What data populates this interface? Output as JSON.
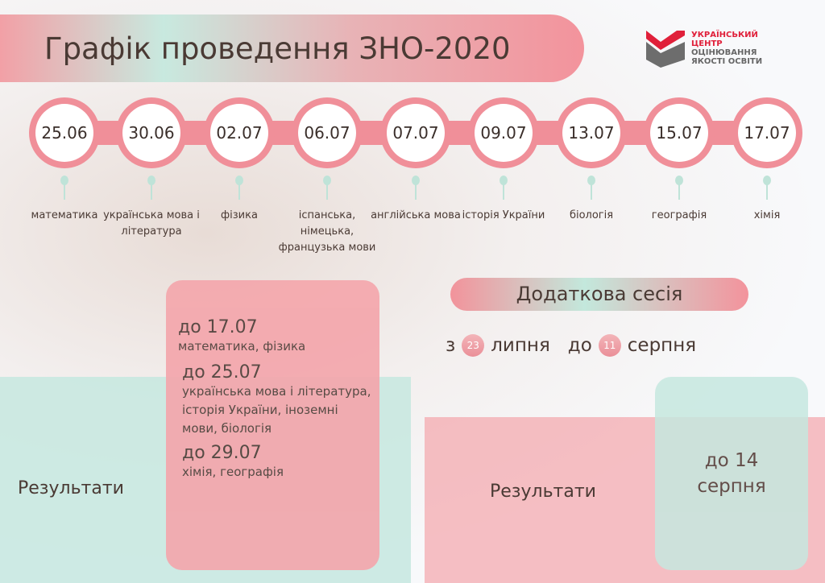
{
  "title": "Графік проведення ЗНО-2020",
  "logo": {
    "line1": "УКРАЇНСЬКИЙ",
    "line2": "ЦЕНТР",
    "line3": "ОЦІНЮВАННЯ",
    "line4": "ЯКОСТІ ОСВІТИ"
  },
  "exams": [
    {
      "date": "25.06",
      "subject": "математика"
    },
    {
      "date": "30.06",
      "subject": "українська мова і література"
    },
    {
      "date": "02.07",
      "subject": "фізика"
    },
    {
      "date": "06.07",
      "subject": "іспанська, німецька, французька мови"
    },
    {
      "date": "07.07",
      "subject": "англійська мова"
    },
    {
      "date": "09.07",
      "subject": "історія України"
    },
    {
      "date": "13.07",
      "subject": "біологія"
    },
    {
      "date": "15.07",
      "subject": "географія"
    },
    {
      "date": "17.07",
      "subject": "хімія"
    }
  ],
  "results": {
    "label": "Результати",
    "items": [
      {
        "date": "до 17.07",
        "subjects": "математика, фізика"
      },
      {
        "date": "до 25.07",
        "subjects": "українська мова і література, історія України, іноземні мови, біологія"
      },
      {
        "date": "до 29.07",
        "subjects": "хімія, географія"
      }
    ]
  },
  "extra": {
    "title": "Додаткова сесія",
    "from_word": "з",
    "from_day": "23",
    "from_month": "липня",
    "to_word": "до",
    "to_day": "11",
    "to_month": "серпня",
    "results_label": "Результати",
    "results_date": "до 14 серпня"
  },
  "colors": {
    "pink": "#f08f99",
    "mint": "#c6e8df",
    "text": "#4a3a34"
  }
}
